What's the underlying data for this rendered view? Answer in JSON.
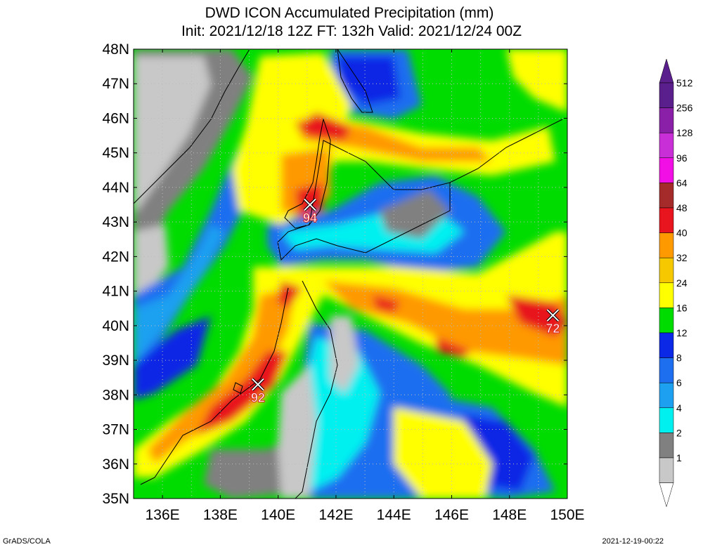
{
  "title": {
    "line1": "DWD ICON Accumulated Precipitation (mm)",
    "line2": "Init: 2021/12/18 12Z  FT: 132h  Valid: 2021/12/24 00Z"
  },
  "map": {
    "lat_labels": [
      "48N",
      "47N",
      "46N",
      "45N",
      "44N",
      "43N",
      "42N",
      "41N",
      "40N",
      "39N",
      "38N",
      "37N",
      "36N",
      "35N"
    ],
    "lon_labels": [
      "136E",
      "138E",
      "140E",
      "142E",
      "144E",
      "146E",
      "148E",
      "150E"
    ],
    "extent": {
      "lon_min": 135,
      "lon_max": 150,
      "lat_min": 35,
      "lat_max": 48
    },
    "maxima": [
      {
        "label": "94",
        "lon": 141.1,
        "lat": 43.5
      },
      {
        "label": "92",
        "lon": 139.3,
        "lat": 38.3
      },
      {
        "label": "72",
        "lon": 149.5,
        "lat": 40.3
      }
    ]
  },
  "colorbar": {
    "labels": [
      "512",
      "256",
      "128",
      "96",
      "64",
      "48",
      "40",
      "32",
      "24",
      "16",
      "12",
      "8",
      "6",
      "4",
      "2",
      "1"
    ],
    "colors": [
      "#5a1f8c",
      "#8a1fa8",
      "#c82fd6",
      "#f20fe6",
      "#a52a2a",
      "#e8141e",
      "#ff9900",
      "#f5c800",
      "#ffff00",
      "#00dc00",
      "#0a28e6",
      "#1e6ef0",
      "#1ea0f0",
      "#00f0f0",
      "#808080",
      "#c8c8c8"
    ]
  },
  "footer": {
    "credit": "GrADS/COLA",
    "timestamp": "2021-12-19-00:22"
  }
}
